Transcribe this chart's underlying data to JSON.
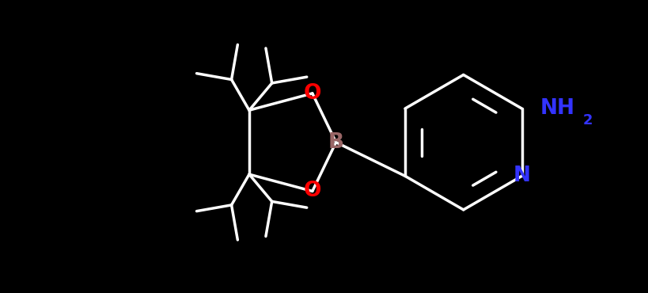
{
  "background_color": "#000000",
  "bond_color": "#ffffff",
  "atom_colors": {
    "O": "#ff0000",
    "B": "#996666",
    "N_ring": "#3333ff",
    "NH2": "#3333ff",
    "C": "#ffffff"
  },
  "fig_width": 8.19,
  "fig_height": 3.7,
  "dpi": 100,
  "lw": 2.5
}
